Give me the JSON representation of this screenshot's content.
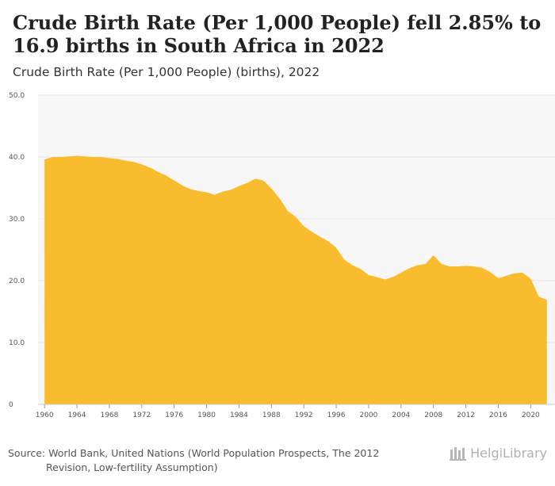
{
  "header": {
    "title": "Crude Birth Rate (Per 1,000 People) fell 2.85% to 16.9 births in South Africa in 2022",
    "subtitle": "Crude Birth Rate (Per 1,000 People) (births), 2022"
  },
  "footer": {
    "source_line1": "Source: World Bank, United Nations (World Population Prospects, The 2012",
    "source_line2": "Revision, Low-fertility Assumption)",
    "logo_text": "HelgiLibrary"
  },
  "colors": {
    "area_fill": "#F9BC2F",
    "plot_background": "#F7F7F7",
    "grid": "#E6E6E6"
  },
  "chart_data": {
    "type": "area",
    "title": "Crude Birth Rate (Per 1,000 People) (births), 2022",
    "xlabel": "",
    "ylabel": "",
    "ylim": [
      0,
      50
    ],
    "xlim": [
      1959.2,
      2023.0
    ],
    "y_ticks": [
      "0",
      "10.0",
      "20.0",
      "30.0",
      "40.0",
      "50.0"
    ],
    "x_ticks": [
      1960,
      1964,
      1968,
      1972,
      1976,
      1980,
      1984,
      1988,
      1992,
      1996,
      2000,
      2004,
      2008,
      2012,
      2016,
      2020
    ],
    "series": [
      {
        "name": "South Africa",
        "x": [
          1960,
          1961,
          1962,
          1963,
          1964,
          1965,
          1966,
          1967,
          1968,
          1969,
          1970,
          1971,
          1972,
          1973,
          1974,
          1975,
          1976,
          1977,
          1978,
          1979,
          1980,
          1981,
          1982,
          1983,
          1984,
          1985,
          1986,
          1987,
          1988,
          1989,
          1990,
          1991,
          1992,
          1993,
          1994,
          1995,
          1996,
          1997,
          1998,
          1999,
          2000,
          2001,
          2002,
          2003,
          2004,
          2005,
          2006,
          2007,
          2008,
          2009,
          2010,
          2011,
          2012,
          2013,
          2014,
          2015,
          2016,
          2017,
          2018,
          2019,
          2020,
          2021,
          2022
        ],
        "values": [
          39.6,
          40.0,
          40.0,
          40.1,
          40.2,
          40.1,
          40.0,
          40.0,
          39.8,
          39.7,
          39.4,
          39.2,
          38.8,
          38.3,
          37.6,
          37.0,
          36.2,
          35.4,
          34.8,
          34.5,
          34.3,
          33.9,
          34.4,
          34.7,
          35.3,
          35.8,
          36.5,
          36.2,
          34.9,
          33.3,
          31.3,
          30.3,
          28.8,
          27.9,
          27.1,
          26.4,
          25.3,
          23.4,
          22.5,
          21.9,
          20.9,
          20.6,
          20.2,
          20.6,
          21.3,
          22.0,
          22.5,
          22.7,
          24.1,
          22.7,
          22.3,
          22.3,
          22.4,
          22.3,
          22.1,
          21.4,
          20.4,
          20.8,
          21.2,
          21.3,
          20.3,
          17.4,
          16.9
        ]
      }
    ]
  }
}
